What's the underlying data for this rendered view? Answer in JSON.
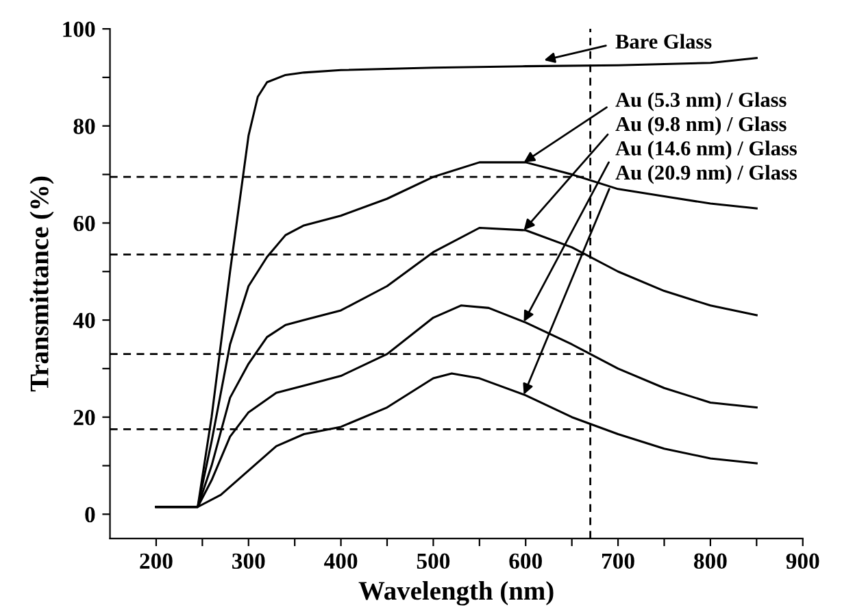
{
  "chart_data": {
    "type": "line",
    "xlabel": "Wavelength (nm)",
    "ylabel": "Transmittance (%)",
    "xlim": [
      150,
      900
    ],
    "ylim": [
      -5,
      100
    ],
    "xticks": [
      200,
      {
        "value": 250,
        "label": null
      },
      300,
      {
        "value": 350,
        "label": null
      },
      400,
      {
        "value": 450,
        "label": null
      },
      500,
      {
        "value": 550,
        "label": null
      },
      600,
      {
        "value": 650,
        "label": null
      },
      700,
      {
        "value": 750,
        "label": null
      },
      800,
      {
        "value": 850,
        "label": null
      },
      900
    ],
    "yticks": [
      0,
      {
        "value": 10,
        "label": null
      },
      20,
      {
        "value": 30,
        "label": null
      },
      40,
      {
        "value": 50,
        "label": null
      },
      60,
      {
        "value": 70,
        "label": null
      },
      80,
      {
        "value": 90,
        "label": null
      },
      100
    ],
    "grid": false,
    "legend": "top right",
    "line_style": "solid",
    "marker": "none",
    "series": [
      {
        "name": "Bare Glass",
        "color": "#000000",
        "x": [
          200,
          245,
          260,
          280,
          300,
          310,
          320,
          340,
          360,
          400,
          500,
          600,
          700,
          800,
          850
        ],
        "values": [
          1.5,
          1.5,
          20,
          50,
          78,
          86,
          89,
          90.5,
          91,
          91.5,
          92,
          92.3,
          92.5,
          93,
          94
        ]
      },
      {
        "name": "Au (5.3 nm) / Glass",
        "color": "#000000",
        "x": [
          200,
          245,
          260,
          280,
          300,
          320,
          340,
          360,
          400,
          450,
          500,
          550,
          600,
          650,
          700,
          750,
          800,
          850
        ],
        "values": [
          1.5,
          1.5,
          15,
          35,
          47,
          53,
          57.5,
          59.5,
          61.5,
          65,
          69.5,
          72.5,
          72.5,
          70,
          67,
          65.5,
          64,
          63
        ]
      },
      {
        "name": "Au (9.8 nm) / Glass",
        "color": "#000000",
        "x": [
          200,
          245,
          260,
          280,
          300,
          320,
          340,
          360,
          400,
          450,
          500,
          550,
          600,
          650,
          700,
          750,
          800,
          850
        ],
        "values": [
          1.5,
          1.5,
          10,
          24,
          31,
          36.5,
          39,
          40,
          42,
          47,
          54,
          59,
          58.5,
          55,
          50,
          46,
          43,
          41
        ]
      },
      {
        "name": "Au (14.6 nm) / Glass",
        "color": "#000000",
        "x": [
          200,
          245,
          260,
          280,
          300,
          330,
          360,
          400,
          450,
          500,
          530,
          560,
          600,
          650,
          700,
          750,
          800,
          850
        ],
        "values": [
          1.5,
          1.5,
          7,
          16,
          21,
          25,
          26.5,
          28.5,
          33,
          40.5,
          43,
          42.5,
          39.5,
          35,
          30,
          26,
          23,
          22
        ]
      },
      {
        "name": "Au (20.9 nm) / Glass",
        "color": "#000000",
        "x": [
          200,
          245,
          270,
          300,
          330,
          360,
          400,
          450,
          500,
          520,
          550,
          600,
          650,
          700,
          750,
          800,
          850
        ],
        "values": [
          1.5,
          1.5,
          4,
          9,
          14,
          16.5,
          18,
          22,
          28,
          29,
          28,
          24.5,
          20,
          16.5,
          13.5,
          11.5,
          10.5
        ]
      }
    ],
    "ref_lines": [
      {
        "axis": "x",
        "value": 670,
        "line_style": "dashed",
        "color": "#000000"
      },
      {
        "axis": "y",
        "value": 69.5,
        "line_style": "dashed",
        "color": "#000000"
      },
      {
        "axis": "y",
        "value": 53.5,
        "line_style": "dashed",
        "color": "#000000"
      },
      {
        "axis": "y",
        "value": 33,
        "line_style": "dashed",
        "color": "#000000"
      },
      {
        "axis": "y",
        "value": 17.5,
        "line_style": "dashed",
        "color": "#000000"
      }
    ]
  }
}
